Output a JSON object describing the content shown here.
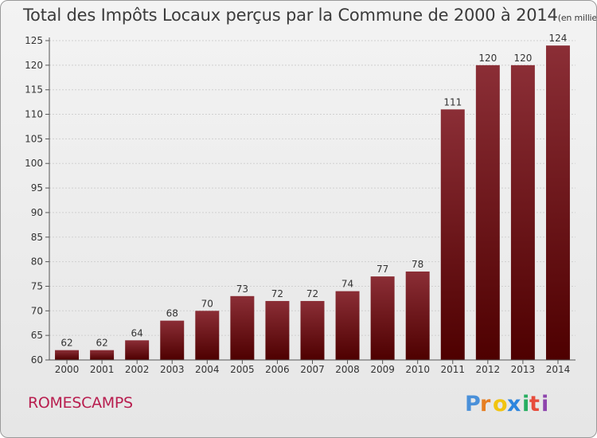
{
  "title": "Total des Impôts Locaux perçus par la Commune de 2000 à 2014",
  "unit_note": "(en milliers d'€)",
  "commune": "ROMESCAMPS",
  "logo_text": "Proxiti",
  "colors": {
    "bar_top": "#8b2e36",
    "bar_bottom": "#4e0000",
    "commune": "#b81e4f",
    "axis": "#555555",
    "grid": "#d0d0d0"
  },
  "chart_data": {
    "type": "bar",
    "title": "Total des Impôts Locaux perçus par la Commune de 2000 à 2014",
    "xlabel": "",
    "ylabel": "",
    "categories": [
      "2000",
      "2001",
      "2002",
      "2003",
      "2004",
      "2005",
      "2006",
      "2007",
      "2008",
      "2009",
      "2010",
      "2011",
      "2012",
      "2013",
      "2014"
    ],
    "values": [
      62,
      62,
      64,
      68,
      70,
      73,
      72,
      72,
      74,
      77,
      78,
      111,
      120,
      120,
      124
    ],
    "ylim": [
      60,
      125
    ],
    "yticks": [
      60,
      65,
      70,
      75,
      80,
      85,
      90,
      95,
      100,
      105,
      110,
      115,
      120,
      125
    ],
    "grid": true,
    "data_labels": true
  }
}
